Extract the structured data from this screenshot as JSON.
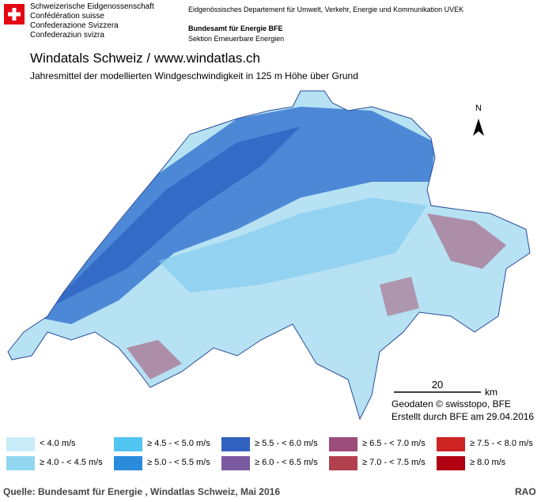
{
  "header": {
    "confederation": [
      "Schweizerische Eidgenossenschaft",
      "Confédération suisse",
      "Confederazione Svizzera",
      "Confederaziun svizra"
    ],
    "department": "Eidgenössisches Departement für Umwelt, Verkehr, Energie und Kommunikation UVEK",
    "office": "Bundesamt für Energie BFE",
    "section": "Sektion Erneuerbare Energien"
  },
  "title": "Windatals Schweiz / www.windatlas.ch",
  "subtitle": "Jahresmittel der modellierten Windgeschwindigkeit in 125 m  Höhe über Grund",
  "map": {
    "north": "N",
    "scale": {
      "value": 20,
      "unit": "km"
    },
    "credits": [
      "Geodaten © swisstopo, BFE",
      "Erstellt durch BFE am 29.04.2016"
    ]
  },
  "legend": [
    {
      "label": "< 4.0 m/s",
      "color": "#c8ecf8"
    },
    {
      "label": "≥ 4.0 - < 4.5 m/s",
      "color": "#92d6f0"
    },
    {
      "label": "≥ 4.5 - < 5.0 m/s",
      "color": "#52c6f2"
    },
    {
      "label": "≥ 5.0 - < 5.5 m/s",
      "color": "#2b8bdb"
    },
    {
      "label": "≥ 5.5 - < 6.0 m/s",
      "color": "#3262bf"
    },
    {
      "label": "≥ 6.0 - < 6.5 m/s",
      "color": "#7b5aa2"
    },
    {
      "label": "≥ 6.5 - < 7.0 m/s",
      "color": "#9c4c78"
    },
    {
      "label": "≥ 7.0 - < 7.5 m/s",
      "color": "#b2404f"
    },
    {
      "label": "≥ 7.5 - < 8.0 m/s",
      "color": "#cd2323"
    },
    {
      "label": "≥ 8.0 m/s",
      "color": "#b00012"
    }
  ],
  "footer": {
    "source": "Quelle: Bundesamt für Energie , Windatlas Schweiz, Mai 2016",
    "code": "RAO"
  }
}
